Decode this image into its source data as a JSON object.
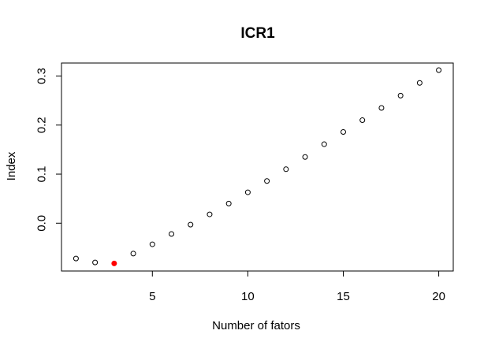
{
  "chart_data": {
    "type": "scatter",
    "title": "ICR1",
    "xlabel": "Number of fators",
    "ylabel": "Index",
    "xlim": [
      0.24,
      20.76
    ],
    "ylim": [
      -0.0975,
      0.3265
    ],
    "x_ticks": [
      5,
      10,
      15,
      20
    ],
    "y_ticks": [
      0.0,
      0.1,
      0.2,
      0.3
    ],
    "grid": false,
    "legend": "none",
    "x": [
      1,
      2,
      3,
      4,
      5,
      6,
      7,
      8,
      9,
      10,
      11,
      12,
      13,
      14,
      15,
      16,
      17,
      18,
      19,
      20
    ],
    "values": [
      -0.072,
      -0.08,
      -0.082,
      -0.062,
      -0.043,
      -0.022,
      -0.003,
      0.018,
      0.04,
      0.063,
      0.086,
      0.11,
      0.135,
      0.161,
      0.186,
      0.21,
      0.235,
      0.26,
      0.286,
      0.312
    ],
    "highlight_index": 2,
    "colors": {
      "point": "#000000",
      "highlight": "#ff0000",
      "axis": "#000000"
    }
  }
}
